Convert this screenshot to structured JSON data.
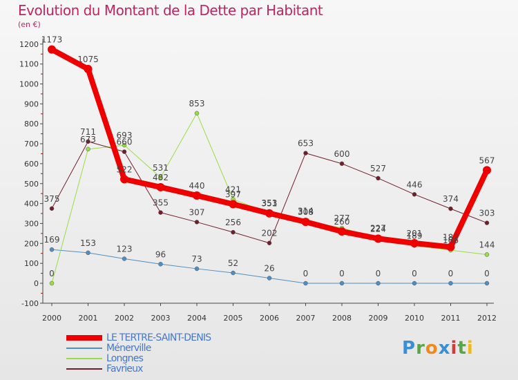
{
  "chart_data": {
    "type": "line",
    "title": "Evolution du Montant de la Dette par Habitant",
    "subtitle": "(en €)",
    "x": [
      "2000",
      "2001",
      "2002",
      "2003",
      "2004",
      "2005",
      "2006",
      "2007",
      "2008",
      "2009",
      "2010",
      "2011",
      "2012"
    ],
    "yticks": [
      -100,
      0,
      100,
      200,
      300,
      400,
      500,
      600,
      700,
      800,
      900,
      1000,
      1100,
      1200
    ],
    "ylim": [
      -100,
      1200
    ],
    "grid": false,
    "legend_position": "bottom-left",
    "series": [
      {
        "name": "LE TERTRE-SAINT-DENIS",
        "color": "#ee0000",
        "values": [
          1173,
          1075,
          522,
          482,
          440,
          397,
          351,
          308,
          260,
          224,
          201,
          182,
          567
        ]
      },
      {
        "name": "Ménerville",
        "color": "#4f8ec2",
        "values": [
          169,
          153,
          123,
          96,
          73,
          52,
          26,
          0,
          0,
          0,
          0,
          0,
          0
        ]
      },
      {
        "name": "Longnes",
        "color": "#99dd44",
        "values": [
          0,
          673,
          693,
          531,
          853,
          421,
          353,
          314,
          277,
          227,
          189,
          166,
          144
        ]
      },
      {
        "name": "Favrieux",
        "color": "#6e1f2a",
        "values": [
          375,
          711,
          660,
          355,
          307,
          256,
          202,
          653,
          600,
          527,
          446,
          374,
          303
        ]
      }
    ]
  },
  "logo": {
    "text": "Proxiti"
  }
}
